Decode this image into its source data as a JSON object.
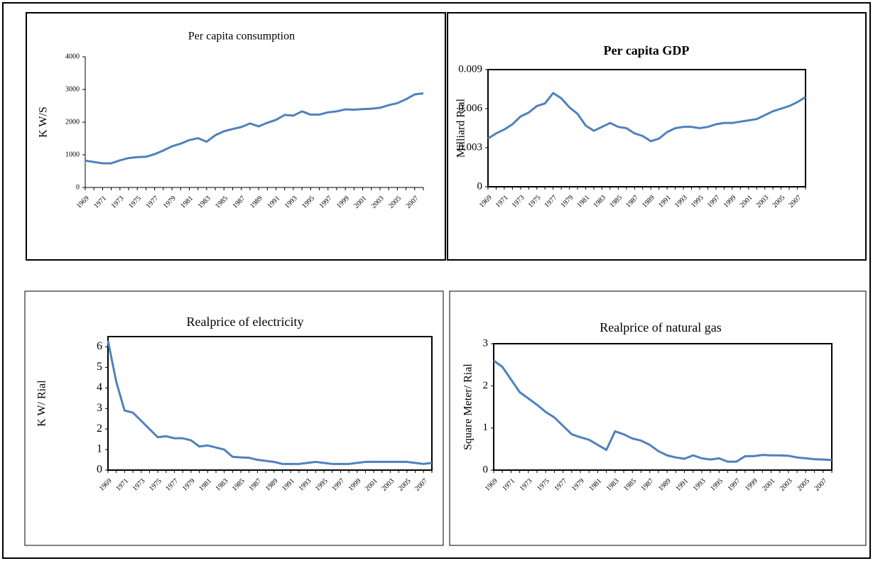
{
  "chart_data": [
    {
      "type": "line",
      "title": "Per capita consumption",
      "title_bold": false,
      "y_label": "K W/S",
      "plot_border": false,
      "color": "#4f81bd",
      "categories": [
        "1969",
        null,
        "1971",
        null,
        "1973",
        null,
        "1975",
        null,
        "1977",
        null,
        "1979",
        null,
        "1981",
        null,
        "1983",
        null,
        "1985",
        null,
        "1987",
        null,
        "1989",
        null,
        "1991",
        null,
        "1993",
        null,
        "1995",
        null,
        "1997",
        null,
        "1999",
        null,
        "2001",
        null,
        "2003",
        null,
        "2005",
        null,
        "2007",
        null
      ],
      "values": [
        820,
        780,
        740,
        740,
        830,
        900,
        930,
        940,
        1020,
        1130,
        1260,
        1340,
        1450,
        1510,
        1400,
        1600,
        1720,
        1790,
        1850,
        1960,
        1870,
        1980,
        2070,
        2220,
        2200,
        2330,
        2230,
        2230,
        2300,
        2330,
        2390,
        2380,
        2400,
        2410,
        2440,
        2520,
        2580,
        2700,
        2850,
        2880
      ],
      "ylim": [
        0,
        4000
      ],
      "yticks": [
        0,
        1000,
        2000,
        3000,
        4000
      ]
    },
    {
      "type": "line",
      "title": "Per capita GDP",
      "title_bold": true,
      "y_label": "Milliard Rial",
      "plot_border": true,
      "color": "#4f81bd",
      "categories": [
        "1969",
        null,
        "1971",
        null,
        "1973",
        null,
        "1975",
        null,
        "1977",
        null,
        "1979",
        null,
        "1981",
        null,
        "1983",
        null,
        "1985",
        null,
        "1987",
        null,
        "1989",
        null,
        "1991",
        null,
        "1993",
        null,
        "1995",
        null,
        "1997",
        null,
        "1999",
        null,
        "2001",
        null,
        "2003",
        null,
        "2005",
        null,
        "2007",
        null
      ],
      "values": [
        0.0037,
        0.0041,
        0.0044,
        0.0048,
        0.0054,
        0.0057,
        0.0062,
        0.0064,
        0.0072,
        0.0068,
        0.0061,
        0.0056,
        0.0047,
        0.0043,
        0.0046,
        0.0049,
        0.0046,
        0.0045,
        0.0041,
        0.0039,
        0.0035,
        0.0037,
        0.0042,
        0.0045,
        0.0046,
        0.0046,
        0.0045,
        0.0046,
        0.0048,
        0.0049,
        0.0049,
        0.005,
        0.0051,
        0.0052,
        0.0055,
        0.0058,
        0.006,
        0.0062,
        0.0065,
        0.0069
      ],
      "ylim": [
        0,
        0.009
      ],
      "yticks": [
        0,
        0.003,
        0.006,
        0.009
      ]
    },
    {
      "type": "line",
      "title": "Realprice of electricity",
      "title_bold": false,
      "y_label": "K W/ Rial",
      "plot_border": true,
      "color": "#4f81bd",
      "categories": [
        "1969",
        null,
        "1971",
        null,
        "1973",
        null,
        "1975",
        null,
        "1977",
        null,
        "1979",
        null,
        "1981",
        null,
        "1983",
        null,
        "1985",
        null,
        "1987",
        null,
        "1989",
        null,
        "1991",
        null,
        "1993",
        null,
        "1995",
        null,
        "1997",
        null,
        "1999",
        null,
        "2001",
        null,
        "2003",
        null,
        "2005",
        null,
        "2007",
        null
      ],
      "values": [
        6.3,
        4.3,
        2.9,
        2.8,
        2.4,
        2.0,
        1.6,
        1.65,
        1.55,
        1.55,
        1.45,
        1.15,
        1.2,
        1.1,
        1.0,
        0.65,
        0.62,
        0.6,
        0.5,
        0.45,
        0.4,
        0.3,
        0.3,
        0.3,
        0.35,
        0.4,
        0.35,
        0.3,
        0.3,
        0.3,
        0.35,
        0.4,
        0.4,
        0.4,
        0.4,
        0.4,
        0.4,
        0.35,
        0.3,
        0.35
      ],
      "ylim": [
        0,
        6.5
      ],
      "yticks": [
        0,
        1,
        2,
        3,
        4,
        5,
        6
      ]
    },
    {
      "type": "line",
      "title": "Realprice of natural gas",
      "title_bold": false,
      "y_label": "Square Meter/ Rial",
      "plot_border": true,
      "color": "#4f81bd",
      "categories": [
        "1969",
        null,
        "1971",
        null,
        "1973",
        null,
        "1975",
        null,
        "1977",
        null,
        "1979",
        null,
        "1981",
        null,
        "1983",
        null,
        "1985",
        null,
        "1987",
        null,
        "1989",
        null,
        "1991",
        null,
        "1993",
        null,
        "1995",
        null,
        "1997",
        null,
        "1999",
        null,
        "2001",
        null,
        "2003",
        null,
        "2005",
        null,
        "2007",
        null
      ],
      "values": [
        2.6,
        2.45,
        2.15,
        1.85,
        1.7,
        1.55,
        1.38,
        1.25,
        1.05,
        0.85,
        0.78,
        0.72,
        0.6,
        0.48,
        0.92,
        0.85,
        0.75,
        0.7,
        0.6,
        0.45,
        0.35,
        0.3,
        0.27,
        0.35,
        0.28,
        0.25,
        0.28,
        0.2,
        0.2,
        0.33,
        0.33,
        0.36,
        0.35,
        0.35,
        0.34,
        0.3,
        0.28,
        0.26,
        0.25,
        0.24
      ],
      "ylim": [
        0,
        3
      ],
      "yticks": [
        0,
        1,
        2,
        3
      ]
    }
  ]
}
